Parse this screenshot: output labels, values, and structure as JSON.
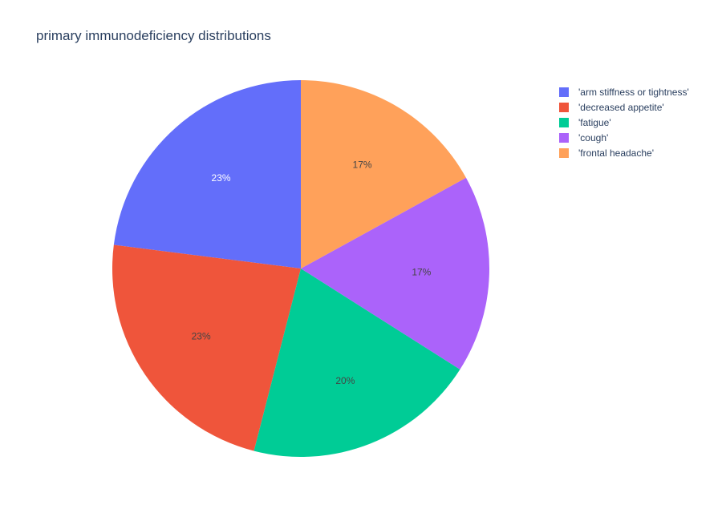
{
  "chart_data": {
    "type": "pie",
    "title": "primary immunodeficiency distributions",
    "labels": [
      "'arm stiffness or tightness'",
      "'decreased appetite'",
      "'fatigue'",
      "'cough'",
      "'frontal headache'"
    ],
    "values": [
      23,
      23,
      20,
      17,
      17
    ],
    "text_labels": [
      "23%",
      "23%",
      "20%",
      "17%",
      "17%"
    ],
    "colors": [
      "#636efa",
      "#EF553B",
      "#00cc96",
      "#ab63fa",
      "#FFA15A"
    ],
    "label_colors": [
      "#ffffff",
      "#444444",
      "#444444",
      "#444444",
      "#444444"
    ],
    "direction": "counterclockwise",
    "start": "top",
    "legend_position": "top-right"
  }
}
